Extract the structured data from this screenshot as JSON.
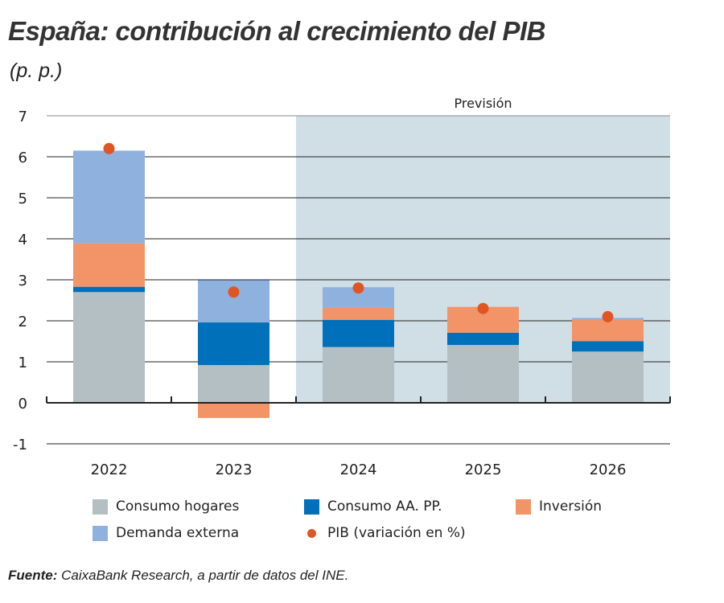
{
  "title": "España: contribución al crecimiento del PIB",
  "subtitle": "(p. p.)",
  "source_label": "Fuente:",
  "source_text": " CaixaBank Research, a partir de datos del INE.",
  "chart_data": {
    "type": "bar",
    "stacked": true,
    "categories": [
      "2022",
      "2023",
      "2024",
      "2025",
      "2026"
    ],
    "ylim": [
      -1,
      7
    ],
    "yticks": [
      -1,
      0,
      1,
      2,
      3,
      4,
      5,
      6,
      7
    ],
    "grid": true,
    "forecast_label": "Previsión",
    "forecast_start": "2024",
    "series": [
      {
        "name": "Consumo hogares",
        "color": "#b4bfc4",
        "values": [
          2.7,
          0.92,
          1.36,
          1.41,
          1.25
        ]
      },
      {
        "name": "Consumo AA. PP.",
        "color": "#0070bb",
        "values": [
          0.13,
          1.04,
          0.66,
          0.3,
          0.25
        ]
      },
      {
        "name": "Inversión",
        "color": "#f29467",
        "values": [
          1.06,
          -0.37,
          0.3,
          0.63,
          0.52
        ]
      },
      {
        "name": "Demanda externa",
        "color": "#8fb1de",
        "values": [
          2.26,
          1.03,
          0.5,
          0.0,
          0.05
        ]
      }
    ],
    "points": {
      "name": "PIB (variación en %)",
      "color": "#e05523",
      "values": [
        6.2,
        2.7,
        2.8,
        2.3,
        2.1
      ]
    },
    "legend_position": "bottom"
  }
}
